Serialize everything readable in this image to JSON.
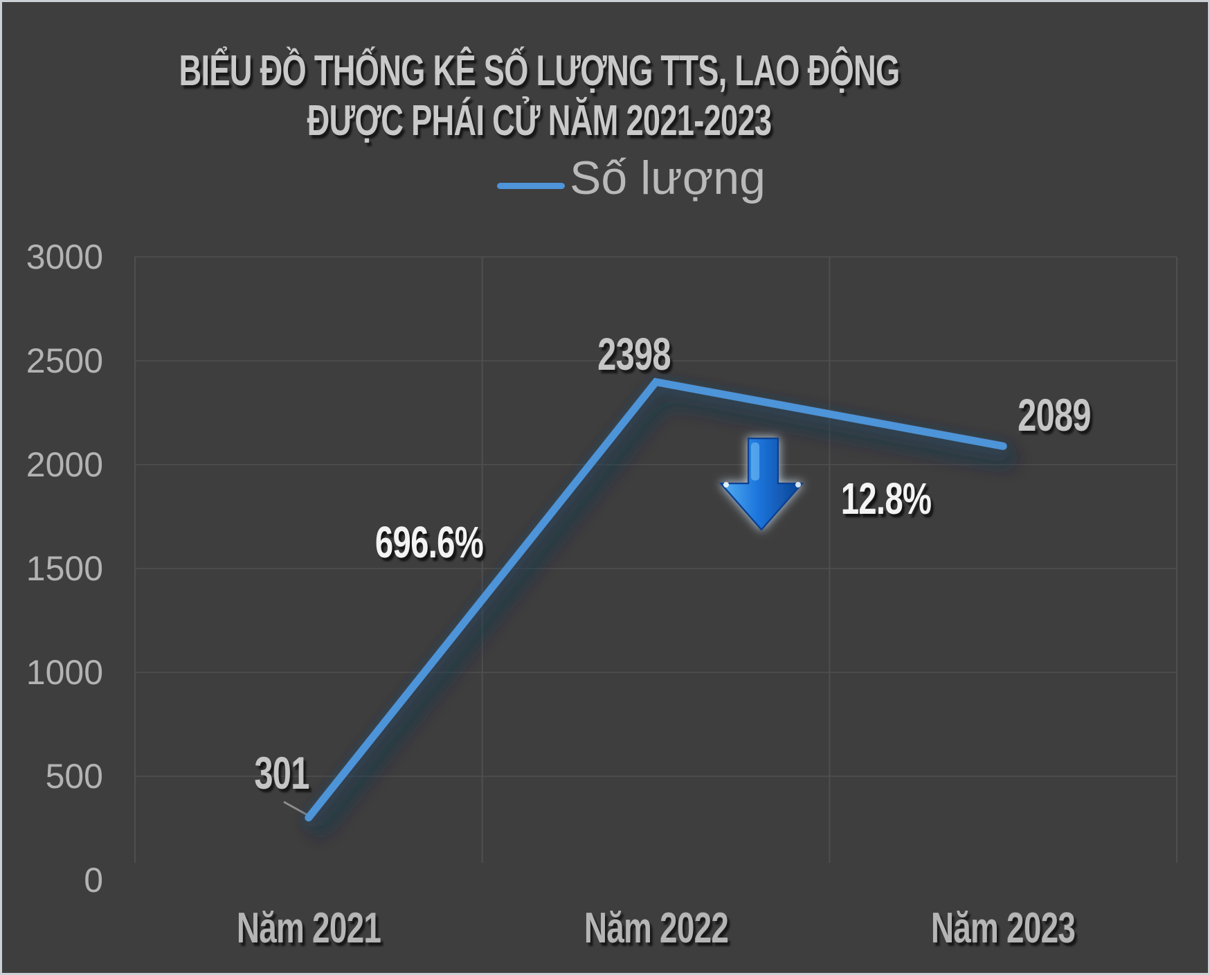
{
  "chart_data": {
    "type": "line",
    "title_lines": [
      "BIỂU ĐỒ THỐNG KÊ SỐ LƯỢNG TTS, LAO ĐỘNG",
      "ĐƯỢC PHÁI CỬ NĂM 2021-2023"
    ],
    "legend": {
      "label": "Số lượng",
      "position": "top-center"
    },
    "categories": [
      "Năm 2021",
      "Năm 2022",
      "Năm 2023"
    ],
    "series": [
      {
        "name": "Số lượng",
        "values": [
          301,
          2398,
          2089
        ]
      }
    ],
    "data_labels": [
      "301",
      "2398",
      "2089"
    ],
    "annotations": [
      {
        "text": "696.6%",
        "kind": "increase-between-2021-2022"
      },
      {
        "text": "12.8%",
        "kind": "decrease-between-2022-2023",
        "icon": "down-arrow-icon"
      }
    ],
    "yticks": [
      "3000",
      "2500",
      "2000",
      "1500",
      "1000",
      "500",
      "0"
    ],
    "ylim": [
      0,
      3000
    ],
    "grid": {
      "horizontal": true,
      "vertical_category_boundaries": true
    },
    "xlabel": "",
    "ylabel": ""
  },
  "colors": {
    "background": "#3e3e3e",
    "frame_border": "#ccd1d6",
    "grid_line": "#4b4b4b",
    "grid_line_vertical": "#515151",
    "series_line": "#4e94d8",
    "leader_line": "#8e8e8e",
    "title_text": "#c9c9c9",
    "axis_label": "#b3b3b3",
    "data_label": "#c6c6c6",
    "annotation_text": "#f3f3f3",
    "arrow_light": "#55b0f2",
    "arrow_main": "#1d76dd",
    "arrow_dark": "#0a4190"
  }
}
